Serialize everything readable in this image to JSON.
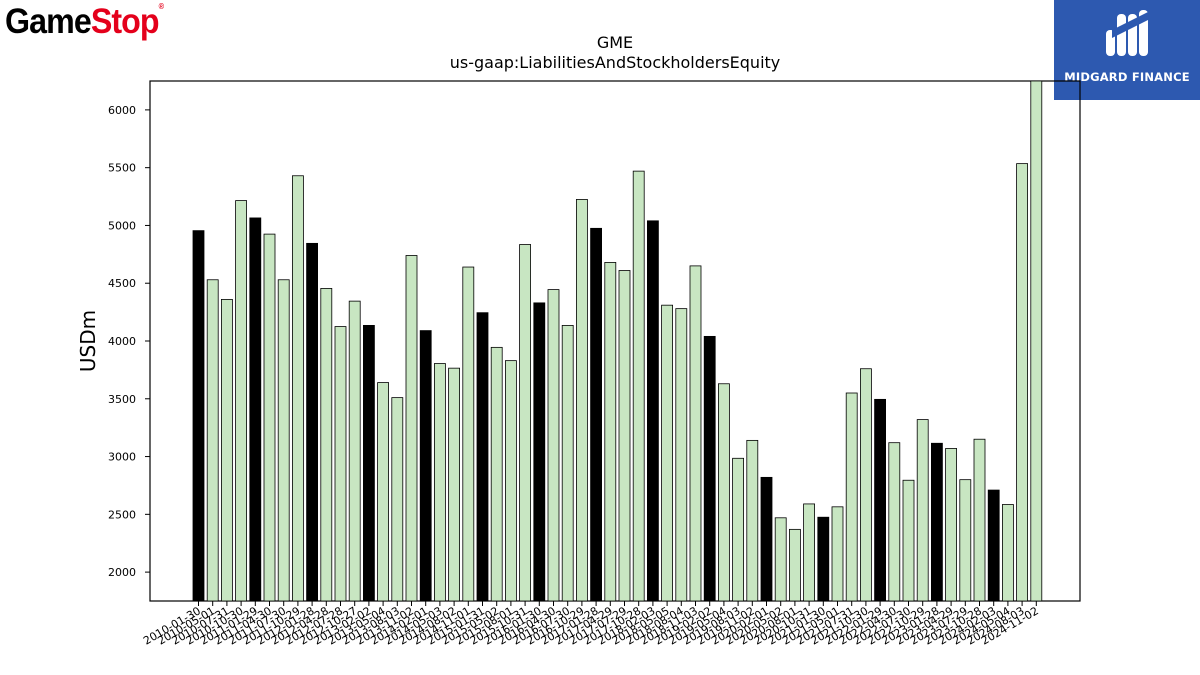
{
  "logos": {
    "left": {
      "part1": "Game",
      "part2": "Stop",
      "mark": "®"
    },
    "right": {
      "name": "MIDGARD FINANCE",
      "icon": "midgard-finance-icon",
      "bg_color": "#2d59b0"
    }
  },
  "chart_data": {
    "type": "bar",
    "title": "GME",
    "subtitle": "us-gaap:LiabilitiesAndStockholdersEquity",
    "xlabel": "",
    "ylabel": "USDm",
    "ylim": [
      1750,
      6250
    ],
    "yticks": [
      2000,
      2500,
      3000,
      3500,
      4000,
      4500,
      5000,
      5500,
      6000
    ],
    "grid": false,
    "colors": {
      "annual": "#000000",
      "quarterly": "#c8e6c2",
      "edge": "#000000"
    },
    "tick_labels_shown": [
      "2010-01-30",
      "2010-05-01",
      "2010-07-31",
      "2010-10-30",
      "2011-01-29",
      "2011-04-30",
      "2011-07-30",
      "2011-10-29",
      "2012-01-28",
      "2012-04-28",
      "2012-07-28",
      "2012-10-27",
      "2013-02-02",
      "2013-05-04",
      "2013-08-03",
      "2013-11-02",
      "2014-02-01",
      "2014-05-03",
      "2014-08-02",
      "2014-11-01",
      "2015-01-31",
      "2015-05-02",
      "2015-08-01",
      "2015-10-31",
      "2016-01-30",
      "2016-04-30",
      "2016-07-30",
      "2016-10-29",
      "2017-01-28",
      "2017-04-29",
      "2017-07-29",
      "2017-10-28",
      "2018-02-03",
      "2018-05-05",
      "2018-08-04",
      "2018-11-03",
      "2019-02-02",
      "2019-05-04",
      "2019-08-03",
      "2019-11-02",
      "2020-02-01",
      "2020-05-02",
      "2020-08-01",
      "2020-10-31",
      "2021-01-30",
      "2021-05-01",
      "2021-07-31",
      "2021-10-30",
      "2022-01-29",
      "2022-04-30",
      "2022-07-30",
      "2022-10-29",
      "2023-01-28",
      "2023-04-29",
      "2023-07-29",
      "2023-10-28",
      "2024-02-03",
      "2024-05-04",
      "2024-08-03",
      "2024-11-02"
    ],
    "categories": [
      "2010-01-30",
      "2010-05-01",
      "2010-07-31",
      "2010-10-30",
      "2011-01-29",
      "2011-04-30",
      "2011-07-30",
      "2011-10-29",
      "2012-01-28",
      "2012-04-28",
      "2012-07-28",
      "2012-10-27",
      "2013-02-02",
      "2013-05-04",
      "2013-08-03",
      "2013-11-02",
      "2014-02-01",
      "2014-05-03",
      "2014-08-02",
      "2014-11-01",
      "2015-01-31",
      "2015-05-02",
      "2015-08-01",
      "2015-10-31",
      "2016-01-30",
      "2016-04-30",
      "2016-07-30",
      "2016-10-29",
      "2017-01-28",
      "2017-04-29",
      "2017-07-29",
      "2017-10-28",
      "2018-02-03",
      "2018-05-05",
      "2018-08-04",
      "2018-11-03",
      "2019-02-02",
      "2019-05-04",
      "2019-08-03",
      "2019-11-02",
      "2020-02-01",
      "2020-05-02",
      "2020-08-01",
      "2020-10-31",
      "2021-01-30",
      "2021-05-01",
      "2021-07-31",
      "2021-10-30",
      "2022-01-29",
      "2022-04-30",
      "2022-07-30",
      "2022-10-29",
      "2023-01-28",
      "2023-04-29",
      "2023-07-29",
      "2023-10-28",
      "2024-02-03",
      "2024-05-04",
      "2024-08-03",
      "2024-11-02"
    ],
    "values": [
      4955,
      4530,
      4360,
      5215,
      5065,
      4925,
      4530,
      5430,
      4845,
      4455,
      4125,
      4345,
      4135,
      3640,
      3510,
      4740,
      4090,
      3805,
      3765,
      4640,
      4245,
      3945,
      3830,
      4835,
      4330,
      4445,
      4135,
      5225,
      4975,
      4680,
      4610,
      5470,
      5040,
      4310,
      4280,
      4650,
      4040,
      3630,
      2985,
      3140,
      2820,
      2470,
      2370,
      2590,
      2475,
      2565,
      3550,
      3760,
      3495,
      3120,
      2795,
      3320,
      3115,
      3070,
      2800,
      3150,
      2710,
      2585,
      5535,
      6290
    ],
    "annual": [
      true,
      false,
      false,
      false,
      true,
      false,
      false,
      false,
      true,
      false,
      false,
      false,
      true,
      false,
      false,
      false,
      true,
      false,
      false,
      false,
      true,
      false,
      false,
      false,
      true,
      false,
      false,
      false,
      true,
      false,
      false,
      false,
      true,
      false,
      false,
      false,
      true,
      false,
      false,
      false,
      true,
      false,
      false,
      false,
      true,
      false,
      false,
      false,
      true,
      false,
      false,
      false,
      true,
      false,
      false,
      false,
      true,
      false,
      false,
      false
    ]
  }
}
